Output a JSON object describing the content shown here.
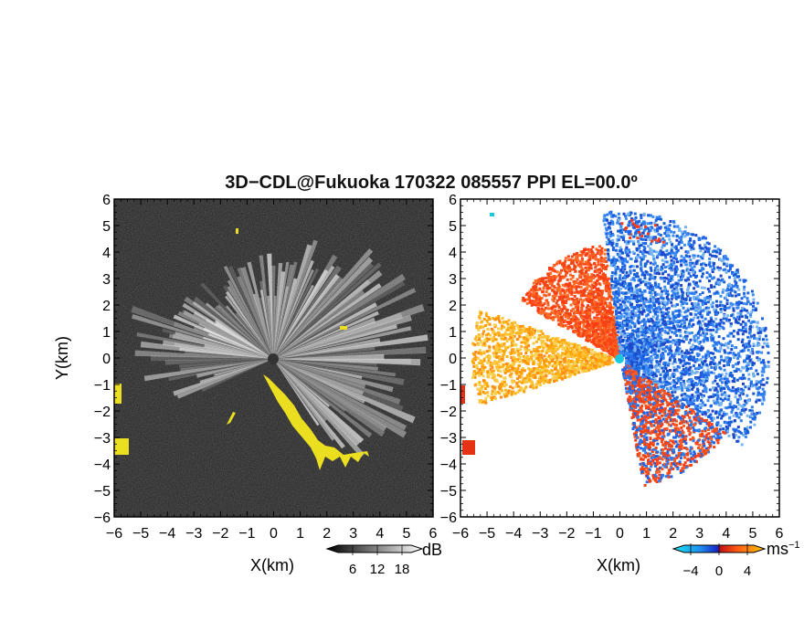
{
  "chart_data": {
    "title": "3D−CDL@Fukuoka 170322 085557 PPI EL=00.0º",
    "panels": [
      {
        "name": "reflectivity",
        "type": "heatmap",
        "xlabel": "X(km)",
        "ylabel": "Y(km)",
        "xlim": [
          -6,
          6
        ],
        "ylim": [
          -6,
          6
        ],
        "xticks": [
          "−6",
          "−5",
          "−4",
          "−3",
          "−2",
          "−1",
          "0",
          "1",
          "2",
          "3",
          "4",
          "5",
          "6"
        ],
        "yticks": [
          "6",
          "5",
          "4",
          "3",
          "2",
          "1",
          "0",
          "−1",
          "−2",
          "−3",
          "−4",
          "−5",
          "−6"
        ],
        "colorbar": {
          "unit": "dB",
          "ticks": [
            "6",
            "12",
            "18"
          ],
          "range": [
            0,
            24
          ]
        }
      },
      {
        "name": "radial-velocity",
        "type": "heatmap",
        "xlabel": "X(km)",
        "xlim": [
          -6,
          6
        ],
        "ylim": [
          -6,
          6
        ],
        "xticks": [
          "−6",
          "−5",
          "−4",
          "−3",
          "−2",
          "−1",
          "0",
          "1",
          "2",
          "3",
          "4",
          "5",
          "6"
        ],
        "yticks": [
          "6",
          "5",
          "4",
          "3",
          "2",
          "1",
          "0",
          "−1",
          "−2",
          "−3",
          "−4",
          "−5",
          "−6"
        ],
        "colorbar": {
          "unit": "ms",
          "unit_sup": "−1",
          "ticks": [
            "−4",
            "0",
            "4"
          ],
          "range": [
            -6,
            6
          ]
        }
      }
    ]
  },
  "colors": {
    "background_dark": "#222222",
    "echo_light": "#e8e8e8",
    "yellow_mask": "#f5e600",
    "blue_neg": "#1e64e6",
    "red_pos": "#ff3c14",
    "orange_pos": "#ffa000",
    "cyan_center": "#19c8dc"
  }
}
